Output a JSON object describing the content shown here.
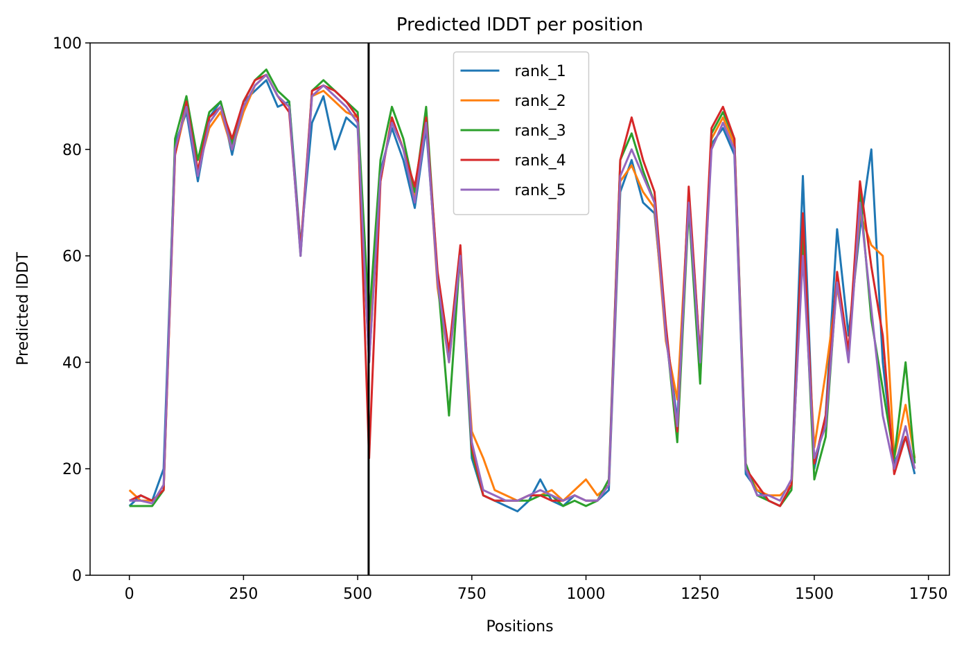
{
  "chart_data": {
    "type": "line",
    "title": "Predicted lDDT per position",
    "xlabel": "Positions",
    "ylabel": "Predicted lDDT",
    "x": [
      0,
      25,
      50,
      75,
      100,
      125,
      150,
      175,
      200,
      225,
      250,
      275,
      300,
      325,
      350,
      375,
      400,
      425,
      450,
      475,
      500,
      525,
      550,
      575,
      600,
      625,
      650,
      675,
      700,
      725,
      750,
      775,
      800,
      825,
      850,
      875,
      900,
      925,
      950,
      975,
      1000,
      1025,
      1050,
      1075,
      1100,
      1125,
      1150,
      1175,
      1200,
      1225,
      1250,
      1275,
      1300,
      1325,
      1350,
      1375,
      1400,
      1425,
      1450,
      1475,
      1500,
      1525,
      1550,
      1575,
      1600,
      1625,
      1650,
      1675,
      1700,
      1720
    ],
    "series": [
      {
        "name": "rank_1",
        "color": "#1f77b4",
        "values": [
          13,
          15,
          14,
          20,
          81,
          87,
          74,
          86,
          89,
          79,
          89,
          91,
          93,
          88,
          89,
          62,
          85,
          90,
          80,
          86,
          84,
          40,
          76,
          84,
          78,
          69,
          84,
          56,
          41,
          60,
          22,
          15,
          14,
          13,
          12,
          14,
          18,
          14,
          13,
          15,
          14,
          14,
          16,
          72,
          78,
          70,
          68,
          46,
          29,
          72,
          41,
          81,
          84,
          79,
          19,
          16,
          14,
          13,
          17,
          75,
          20,
          30,
          65,
          45,
          65,
          80,
          40,
          21,
          26,
          19
        ]
      },
      {
        "name": "rank_2",
        "color": "#ff7f0e",
        "values": [
          16,
          14,
          14,
          16,
          79,
          88,
          76,
          84,
          87,
          80,
          87,
          92,
          94,
          90,
          88,
          61,
          90,
          91,
          89,
          87,
          86,
          45,
          74,
          86,
          80,
          71,
          86,
          54,
          40,
          59,
          27,
          22,
          16,
          15,
          14,
          15,
          15,
          16,
          14,
          16,
          18,
          15,
          17,
          74,
          77,
          72,
          69,
          44,
          33,
          71,
          40,
          82,
          86,
          81,
          20,
          16,
          15,
          15,
          17,
          62,
          24,
          38,
          54,
          42,
          68,
          62,
          60,
          22,
          32,
          22
        ]
      },
      {
        "name": "rank_3",
        "color": "#2ca02c",
        "values": [
          13,
          13,
          13,
          16,
          82,
          90,
          78,
          87,
          89,
          81,
          89,
          93,
          95,
          91,
          89,
          60,
          91,
          93,
          91,
          89,
          87,
          48,
          78,
          88,
          82,
          72,
          88,
          56,
          30,
          61,
          23,
          15,
          14,
          14,
          14,
          14,
          15,
          15,
          13,
          14,
          13,
          14,
          18,
          78,
          83,
          76,
          70,
          46,
          25,
          69,
          36,
          83,
          87,
          82,
          21,
          15,
          14,
          13,
          16,
          64,
          18,
          26,
          56,
          41,
          72,
          48,
          35,
          22,
          40,
          21
        ]
      },
      {
        "name": "rank_4",
        "color": "#d62728",
        "values": [
          14,
          15,
          14,
          16,
          79,
          89,
          76,
          86,
          88,
          82,
          89,
          93,
          94,
          90,
          87,
          61,
          91,
          92,
          91,
          89,
          86,
          22,
          74,
          86,
          80,
          73,
          86,
          57,
          42,
          62,
          24,
          15,
          14,
          14,
          14,
          15,
          15,
          14,
          14,
          15,
          14,
          14,
          17,
          78,
          86,
          78,
          72,
          47,
          27,
          73,
          41,
          84,
          88,
          82,
          20,
          17,
          14,
          13,
          17,
          68,
          21,
          30,
          57,
          42,
          74,
          58,
          45,
          19,
          26,
          20
        ]
      },
      {
        "name": "rank_5",
        "color": "#9467bd",
        "values": [
          14,
          14,
          13.5,
          17,
          80,
          88,
          75,
          85,
          88,
          80,
          88,
          92,
          94,
          90,
          88,
          60,
          90,
          92,
          90,
          88,
          85,
          40,
          75,
          85,
          80,
          70,
          85,
          55,
          40,
          60,
          25,
          16,
          15,
          14,
          14,
          15,
          16,
          15,
          14,
          15,
          14,
          14,
          17,
          75,
          80,
          75,
          70,
          45,
          28,
          70,
          40,
          80,
          85,
          80,
          20,
          15,
          15,
          14,
          18,
          60,
          22,
          28,
          55,
          40,
          70,
          50,
          30,
          20,
          28,
          20
        ]
      }
    ],
    "vline": 524,
    "vline_color": "#000000",
    "xlim": [
      -86,
      1796
    ],
    "ylim": [
      0,
      100
    ],
    "xticks": [
      0,
      250,
      500,
      750,
      1000,
      1250,
      1500,
      1750
    ],
    "yticks": [
      0,
      20,
      40,
      60,
      80,
      100
    ],
    "legend": "upper center",
    "grid": false
  }
}
